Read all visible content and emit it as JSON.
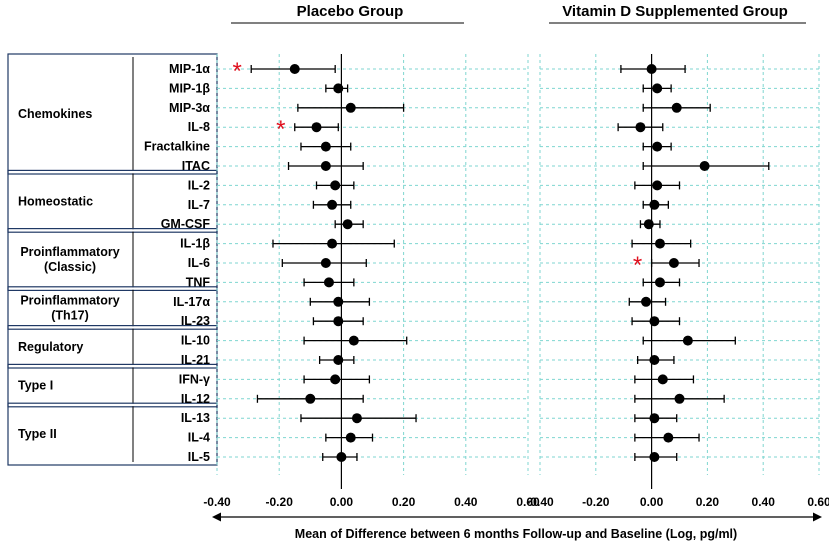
{
  "chart_data": {
    "type": "forest",
    "panels": [
      {
        "title": "Placebo Group",
        "series": [
          {
            "name": "MIP-1α",
            "value": -0.15,
            "low": -0.29,
            "high": -0.02,
            "significant": true
          },
          {
            "name": "MIP-1β",
            "value": -0.01,
            "low": -0.05,
            "high": 0.02,
            "significant": false
          },
          {
            "name": "MIP-3α",
            "value": 0.03,
            "low": -0.14,
            "high": 0.2,
            "significant": false
          },
          {
            "name": "IL-8",
            "value": -0.08,
            "low": -0.15,
            "high": -0.01,
            "significant": true
          },
          {
            "name": "Fractalkine",
            "value": -0.05,
            "low": -0.13,
            "high": 0.03,
            "significant": false
          },
          {
            "name": "ITAC",
            "value": -0.05,
            "low": -0.17,
            "high": 0.07,
            "significant": false
          },
          {
            "name": "IL-2",
            "value": -0.02,
            "low": -0.08,
            "high": 0.04,
            "significant": false
          },
          {
            "name": "IL-7",
            "value": -0.03,
            "low": -0.09,
            "high": 0.03,
            "significant": false
          },
          {
            "name": "GM-CSF",
            "value": 0.02,
            "low": -0.02,
            "high": 0.07,
            "significant": false
          },
          {
            "name": "IL-1β",
            "value": -0.03,
            "low": -0.22,
            "high": 0.17,
            "significant": false
          },
          {
            "name": "IL-6",
            "value": -0.05,
            "low": -0.19,
            "high": 0.08,
            "significant": false
          },
          {
            "name": "TNF",
            "value": -0.04,
            "low": -0.12,
            "high": 0.04,
            "significant": false
          },
          {
            "name": "IL-17α",
            "value": -0.01,
            "low": -0.1,
            "high": 0.09,
            "significant": false
          },
          {
            "name": "IL-23",
            "value": -0.01,
            "low": -0.09,
            "high": 0.07,
            "significant": false
          },
          {
            "name": "IL-10",
            "value": 0.04,
            "low": -0.12,
            "high": 0.21,
            "significant": false
          },
          {
            "name": "IL-21",
            "value": -0.01,
            "low": -0.07,
            "high": 0.04,
            "significant": false
          },
          {
            "name": "IFN-γ",
            "value": -0.02,
            "low": -0.12,
            "high": 0.09,
            "significant": false
          },
          {
            "name": "IL-12",
            "value": -0.1,
            "low": -0.27,
            "high": 0.07,
            "significant": false
          },
          {
            "name": "IL-13",
            "value": 0.05,
            "low": -0.13,
            "high": 0.24,
            "significant": false
          },
          {
            "name": "IL-4",
            "value": 0.03,
            "low": -0.05,
            "high": 0.1,
            "significant": false
          },
          {
            "name": "IL-5",
            "value": 0.0,
            "low": -0.06,
            "high": 0.05,
            "significant": false
          }
        ]
      },
      {
        "title": "Vitamin D Supplemented Group",
        "series": [
          {
            "name": "MIP-1α",
            "value": 0.0,
            "low": -0.11,
            "high": 0.12,
            "significant": false
          },
          {
            "name": "MIP-1β",
            "value": 0.02,
            "low": -0.03,
            "high": 0.07,
            "significant": false
          },
          {
            "name": "MIP-3α",
            "value": 0.09,
            "low": -0.03,
            "high": 0.21,
            "significant": false
          },
          {
            "name": "IL-8",
            "value": -0.04,
            "low": -0.12,
            "high": 0.04,
            "significant": false
          },
          {
            "name": "Fractalkine",
            "value": 0.02,
            "low": -0.03,
            "high": 0.07,
            "significant": false
          },
          {
            "name": "ITAC",
            "value": 0.19,
            "low": -0.03,
            "high": 0.42,
            "significant": false
          },
          {
            "name": "IL-2",
            "value": 0.02,
            "low": -0.06,
            "high": 0.1,
            "significant": false
          },
          {
            "name": "IL-7",
            "value": 0.01,
            "low": -0.03,
            "high": 0.06,
            "significant": false
          },
          {
            "name": "GM-CSF",
            "value": -0.01,
            "low": -0.04,
            "high": 0.03,
            "significant": false
          },
          {
            "name": "IL-1β",
            "value": 0.03,
            "low": -0.07,
            "high": 0.14,
            "significant": false
          },
          {
            "name": "IL-6",
            "value": 0.08,
            "low": 0.0,
            "high": 0.17,
            "significant": true
          },
          {
            "name": "TNF",
            "value": 0.03,
            "low": -0.03,
            "high": 0.1,
            "significant": false
          },
          {
            "name": "IL-17α",
            "value": -0.02,
            "low": -0.08,
            "high": 0.05,
            "significant": false
          },
          {
            "name": "IL-23",
            "value": 0.01,
            "low": -0.07,
            "high": 0.1,
            "significant": false
          },
          {
            "name": "IL-10",
            "value": 0.13,
            "low": -0.03,
            "high": 0.3,
            "significant": false
          },
          {
            "name": "IL-21",
            "value": 0.01,
            "low": -0.05,
            "high": 0.08,
            "significant": false
          },
          {
            "name": "IFN-γ",
            "value": 0.04,
            "low": -0.06,
            "high": 0.15,
            "significant": false
          },
          {
            "name": "IL-12",
            "value": 0.1,
            "low": -0.06,
            "high": 0.26,
            "significant": false
          },
          {
            "name": "IL-13",
            "value": 0.01,
            "low": -0.06,
            "high": 0.09,
            "significant": false
          },
          {
            "name": "IL-4",
            "value": 0.06,
            "low": -0.06,
            "high": 0.17,
            "significant": false
          },
          {
            "name": "IL-5",
            "value": 0.01,
            "low": -0.06,
            "high": 0.09,
            "significant": false
          }
        ]
      }
    ],
    "groups": [
      {
        "label": [
          "Chemokines"
        ],
        "count": 6
      },
      {
        "label": [
          "Homeostatic"
        ],
        "count": 3
      },
      {
        "label": [
          "Proinflammatory",
          "(Classic)"
        ],
        "count": 3
      },
      {
        "label": [
          "Proinflammatory",
          "(Th17)"
        ],
        "count": 2
      },
      {
        "label": [
          "Regulatory"
        ],
        "count": 2
      },
      {
        "label": [
          "Type I"
        ],
        "count": 2
      },
      {
        "label": [
          "Type II"
        ],
        "count": 3
      }
    ],
    "xlim": [
      -0.4,
      0.6
    ],
    "xticks": [
      -0.4,
      -0.2,
      0.0,
      0.2,
      0.4,
      0.6
    ],
    "xticklabels": [
      "-0.40",
      "-0.20",
      "0.00",
      "0.20",
      "0.40",
      "0.60"
    ],
    "xlabel": "Mean of Difference between 6 months Follow-up and Baseline (Log, pg/ml)",
    "significance_marker": "*",
    "grid": true,
    "colors": {
      "grid": "#7fd6d0",
      "marker": "#000000",
      "significance": "#e0101e",
      "box": "#1f3864"
    }
  }
}
